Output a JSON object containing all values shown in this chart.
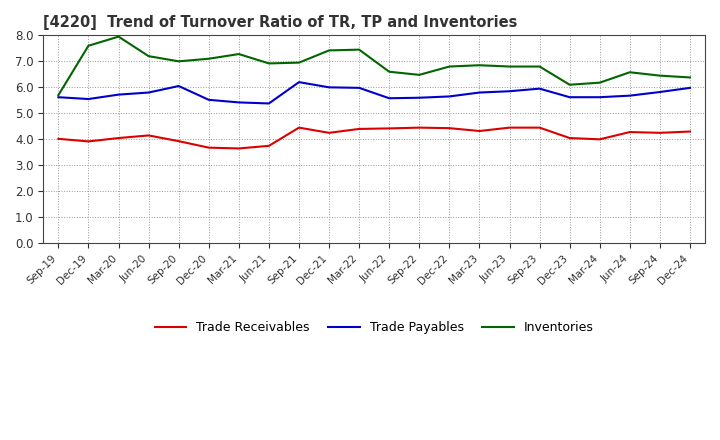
{
  "title": "[4220]  Trend of Turnover Ratio of TR, TP and Inventories",
  "x_labels": [
    "Sep-19",
    "Dec-19",
    "Mar-20",
    "Jun-20",
    "Sep-20",
    "Dec-20",
    "Mar-21",
    "Jun-21",
    "Sep-21",
    "Dec-21",
    "Mar-22",
    "Jun-22",
    "Sep-22",
    "Dec-22",
    "Mar-23",
    "Jun-23",
    "Sep-23",
    "Dec-23",
    "Mar-24",
    "Jun-24",
    "Sep-24",
    "Dec-24"
  ],
  "trade_receivables": [
    4.02,
    3.92,
    4.05,
    4.15,
    3.93,
    3.68,
    3.65,
    3.75,
    4.45,
    4.25,
    4.4,
    4.42,
    4.45,
    4.43,
    4.32,
    4.45,
    4.45,
    4.05,
    4.0,
    4.28,
    4.25,
    4.3
  ],
  "trade_payables": [
    5.62,
    5.55,
    5.72,
    5.8,
    6.05,
    5.52,
    5.42,
    5.38,
    6.2,
    6.0,
    5.98,
    5.58,
    5.6,
    5.65,
    5.8,
    5.85,
    5.95,
    5.62,
    5.62,
    5.68,
    5.82,
    5.98
  ],
  "inventories": [
    5.7,
    7.6,
    7.95,
    7.2,
    7.0,
    7.1,
    7.28,
    6.92,
    6.95,
    7.42,
    7.45,
    6.6,
    6.48,
    6.8,
    6.85,
    6.8,
    6.8,
    6.1,
    6.18,
    6.58,
    6.45,
    6.38
  ],
  "tr_color": "#dd0000",
  "tp_color": "#0000cc",
  "inv_color": "#006600",
  "ylim": [
    0.0,
    8.0
  ],
  "yticks": [
    0.0,
    1.0,
    2.0,
    3.0,
    4.0,
    5.0,
    6.0,
    7.0,
    8.0
  ],
  "legend_labels": [
    "Trade Receivables",
    "Trade Payables",
    "Inventories"
  ],
  "bg_color": "#ffffff",
  "plot_bg_color": "#ffffff"
}
